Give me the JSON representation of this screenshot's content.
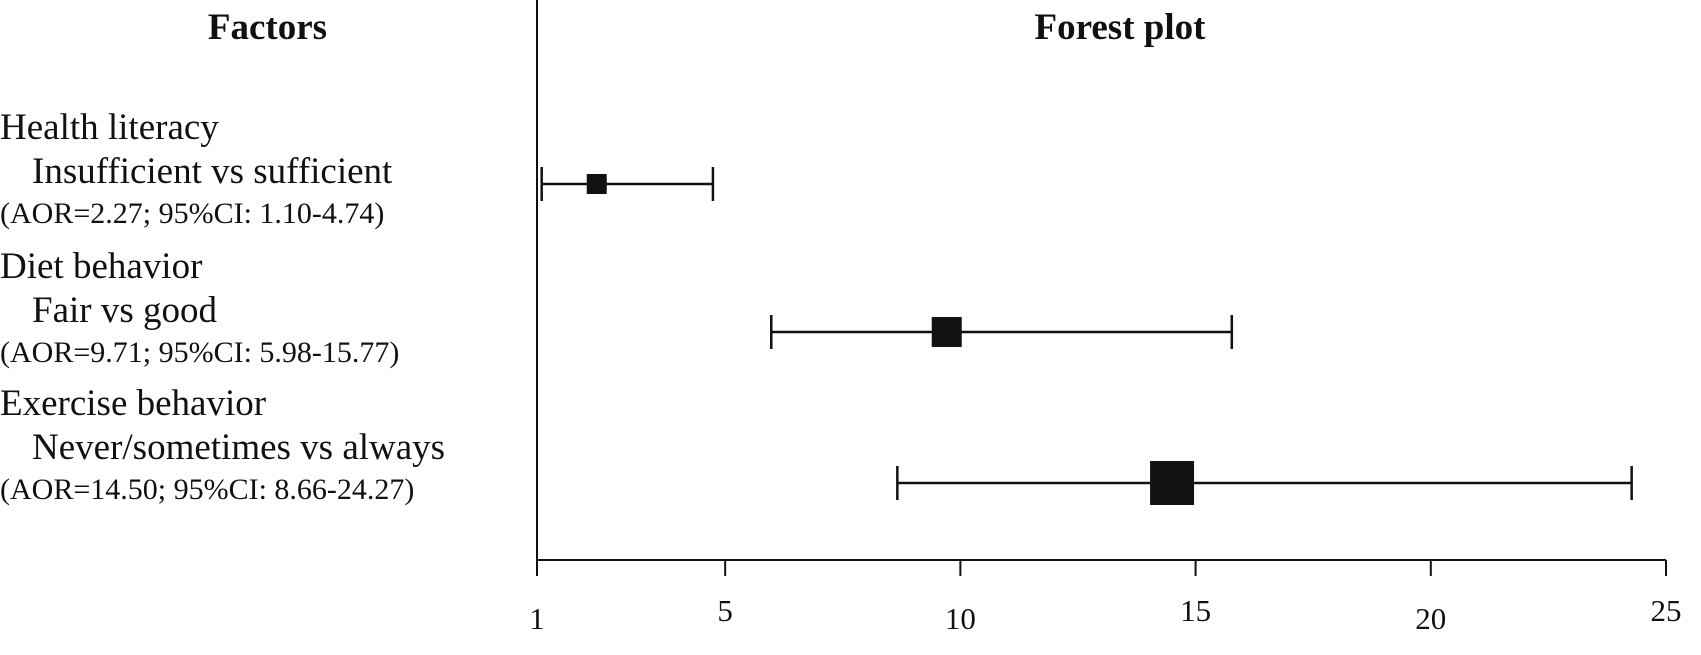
{
  "headers": {
    "factors": "Factors",
    "plot": "Forest plot"
  },
  "rows": [
    {
      "factor": "Health literacy",
      "comparison": "Insufficient vs sufficient",
      "stat": "(AOR=2.27; 95%CI: 1.10-4.74)"
    },
    {
      "factor": "Diet behavior",
      "comparison": "Fair vs good",
      "stat": "(AOR=9.71; 95%CI: 5.98-15.77)"
    },
    {
      "factor": "Exercise behavior",
      "comparison": "Never/sometimes vs always",
      "stat": "(AOR=14.50; 95%CI: 8.66-24.27)"
    }
  ],
  "chart_data": {
    "type": "forest",
    "title": "Forest plot",
    "xlim": [
      1,
      25
    ],
    "xticks": [
      1,
      5,
      10,
      15,
      20,
      25
    ],
    "tick_labels": [
      "1",
      "5",
      "10",
      "15",
      "20",
      "25"
    ],
    "points": [
      {
        "label": "Insufficient vs sufficient",
        "aor": 2.27,
        "ci_low": 1.1,
        "ci_high": 4.74
      },
      {
        "label": "Fair vs good",
        "aor": 9.71,
        "ci_low": 5.98,
        "ci_high": 15.77
      },
      {
        "label": "Never/sometimes vs always",
        "aor": 14.5,
        "ci_low": 8.66,
        "ci_high": 24.27
      }
    ],
    "marker_color": "#111111",
    "grid": false
  }
}
